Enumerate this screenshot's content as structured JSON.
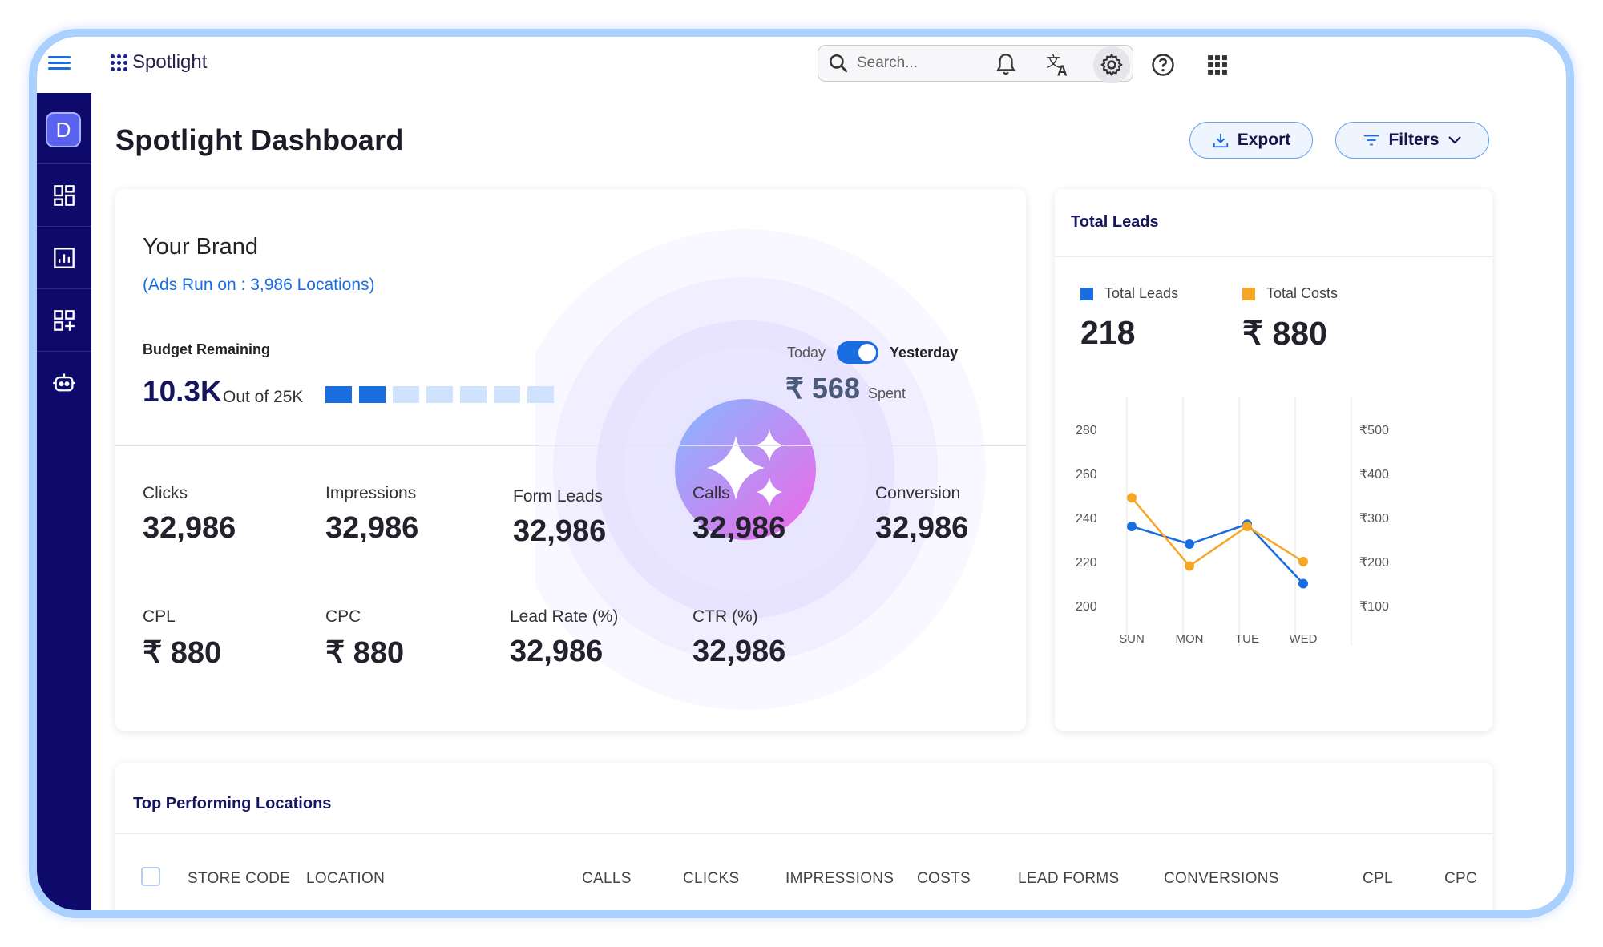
{
  "app": {
    "name": "Spotlight",
    "search_placeholder": "Search...",
    "avatar_letter": "D"
  },
  "topbar": {
    "icons": [
      "bell-icon",
      "translate-icon",
      "settings-icon",
      "help-icon",
      "apps-grid-icon"
    ]
  },
  "sidebar": {
    "items": [
      "dashboard-icon",
      "reports-icon",
      "add-widget-icon",
      "bot-icon"
    ]
  },
  "page": {
    "title": "Spotlight Dashboard",
    "export_label": "Export",
    "filters_label": "Filters"
  },
  "brand": {
    "name": "Your Brand",
    "ads_run": "(Ads Run on : 3,986 Locations)",
    "budget_label": "Budget Remaining",
    "budget_value": "10.3K",
    "budget_of": "Out of 25K",
    "budget_segments_filled": 2,
    "budget_segments_total": 7,
    "toggle_left": "Today",
    "toggle_right": "Yesterday",
    "spent_amount": "₹ 568",
    "spent_label": "Spent"
  },
  "metrics": [
    {
      "label": "Clicks",
      "value": "32,986"
    },
    {
      "label": "Impressions",
      "value": "32,986"
    },
    {
      "label": "Form Leads",
      "value": "32,986"
    },
    {
      "label": "Calls",
      "value": "32,986"
    },
    {
      "label": "Conversion",
      "value": "32,986"
    },
    {
      "label": "CPL",
      "value": "₹ 880"
    },
    {
      "label": "CPC",
      "value": "₹ 880"
    },
    {
      "label": "Lead Rate (%)",
      "value": "32,986"
    },
    {
      "label": "CTR (%)",
      "value": "32,986"
    }
  ],
  "leads_card": {
    "title": "Total Leads",
    "legend": [
      {
        "label": "Total Leads",
        "value": "218",
        "color": "#1a6de0"
      },
      {
        "label": "Total Costs",
        "value": "₹ 880",
        "color": "#f5a623"
      }
    ]
  },
  "chart_data": {
    "type": "line",
    "categories": [
      "SUN",
      "MON",
      "TUE",
      "WED"
    ],
    "y_left_ticks": [
      "280",
      "260",
      "240",
      "220",
      "200"
    ],
    "y_right_ticks": [
      "₹500",
      "₹400",
      "₹300",
      "₹200",
      "₹100"
    ],
    "ylim_left": [
      200,
      280
    ],
    "ylim_right": [
      100,
      500
    ],
    "series": [
      {
        "name": "Total Leads",
        "color": "#1a6de0",
        "axis": "left",
        "values": [
          236,
          228,
          237,
          210
        ]
      },
      {
        "name": "Total Costs",
        "color": "#f5a623",
        "axis": "right",
        "values": [
          345,
          190,
          280,
          200
        ]
      }
    ]
  },
  "table": {
    "title": "Top Performing Locations",
    "columns": [
      "STORE CODE",
      "LOCATION",
      "CALLS",
      "CLICKS",
      "IMPRESSIONS",
      "COSTS",
      "LEAD FORMS",
      "CONVERSIONS",
      "CPL",
      "CPC"
    ]
  }
}
